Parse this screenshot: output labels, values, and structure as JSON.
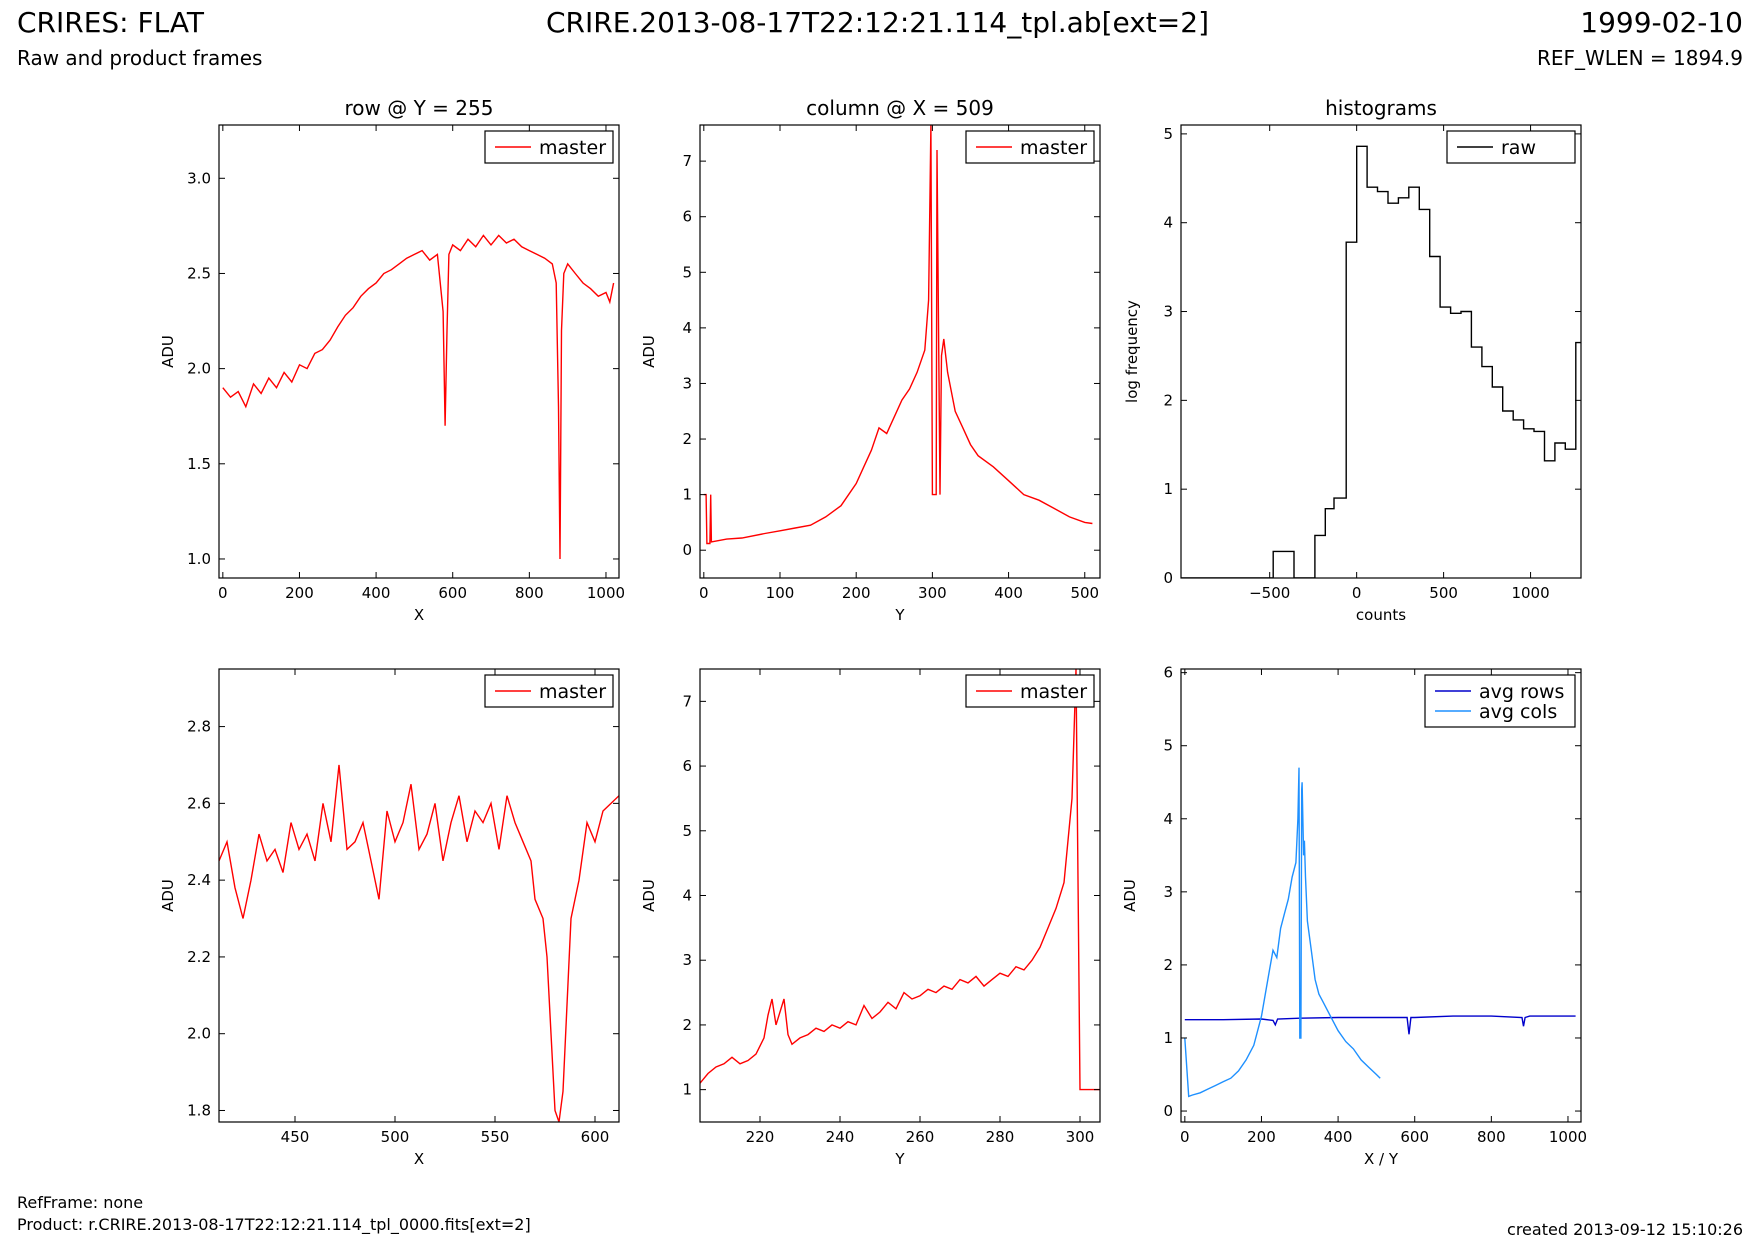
{
  "header": {
    "title_left": "CRIRES: FLAT",
    "subtitle_left": "Raw and product frames",
    "title_center": "CRIRE.2013-08-17T22:12:21.114_tpl.ab[ext=2]",
    "title_right": "1999-02-10",
    "subtitle_right": "REF_WLEN = 1894.9"
  },
  "footer": {
    "ref_frame": "RefFrame: none",
    "product": "Product: r.CRIRE.2013-08-17T22:12:21.114_tpl_0000.fits[ext=2]",
    "created": "created 2013-09-12 15:10:26"
  },
  "colors": {
    "master": "#ff0000",
    "raw": "#000000",
    "avg_rows": "#0000cc",
    "avg_cols": "#1e90ff"
  },
  "chart_data": [
    {
      "id": "row",
      "type": "line",
      "title": "row @ Y = 255",
      "xlabel": "X",
      "ylabel": "ADU",
      "xlim": [
        -10,
        1034
      ],
      "ylim": [
        0.9,
        3.28
      ],
      "xticks": [
        0,
        200,
        400,
        600,
        800,
        1000
      ],
      "yticks": [
        1.0,
        1.5,
        2.0,
        2.5,
        3.0
      ],
      "ytick_decimals": 1,
      "legend": "upper right",
      "series": [
        {
          "name": "master",
          "color": "#ff0000",
          "x": [
            0,
            20,
            40,
            60,
            80,
            100,
            120,
            140,
            160,
            180,
            200,
            220,
            240,
            260,
            280,
            300,
            320,
            340,
            360,
            380,
            400,
            420,
            440,
            460,
            480,
            500,
            520,
            540,
            560,
            575,
            580,
            585,
            590,
            600,
            620,
            640,
            660,
            680,
            700,
            720,
            740,
            760,
            780,
            800,
            820,
            840,
            860,
            870,
            876,
            880,
            884,
            890,
            900,
            920,
            940,
            960,
            980,
            1000,
            1010,
            1020
          ],
          "y": [
            1.9,
            1.85,
            1.88,
            1.8,
            1.92,
            1.87,
            1.95,
            1.9,
            1.98,
            1.93,
            2.02,
            2.0,
            2.08,
            2.1,
            2.15,
            2.22,
            2.28,
            2.32,
            2.38,
            2.42,
            2.45,
            2.5,
            2.52,
            2.55,
            2.58,
            2.6,
            2.62,
            2.57,
            2.6,
            2.3,
            1.7,
            2.2,
            2.6,
            2.65,
            2.62,
            2.68,
            2.64,
            2.7,
            2.65,
            2.7,
            2.66,
            2.68,
            2.64,
            2.62,
            2.6,
            2.58,
            2.55,
            2.45,
            1.8,
            1.0,
            2.2,
            2.5,
            2.55,
            2.5,
            2.45,
            2.42,
            2.38,
            2.4,
            2.35,
            2.45
          ]
        }
      ]
    },
    {
      "id": "column",
      "type": "line",
      "title": "column @ X = 509",
      "xlabel": "Y",
      "ylabel": "ADU",
      "xlim": [
        -5,
        520
      ],
      "ylim": [
        -0.5,
        7.65
      ],
      "xticks": [
        0,
        100,
        200,
        300,
        400,
        500
      ],
      "yticks": [
        0,
        1,
        2,
        3,
        4,
        5,
        6,
        7
      ],
      "ytick_decimals": 0,
      "legend": "upper right",
      "series": [
        {
          "name": "master",
          "color": "#ff0000",
          "x": [
            0,
            3,
            4,
            8,
            9,
            10,
            30,
            50,
            80,
            100,
            120,
            140,
            160,
            180,
            200,
            210,
            220,
            230,
            240,
            250,
            260,
            270,
            280,
            290,
            295,
            298,
            300,
            302,
            303,
            305,
            306,
            310,
            312,
            315,
            320,
            330,
            340,
            350,
            360,
            380,
            400,
            420,
            440,
            460,
            480,
            500,
            510
          ],
          "y": [
            1.0,
            1.0,
            0.12,
            0.12,
            1.0,
            0.15,
            0.2,
            0.22,
            0.3,
            0.35,
            0.4,
            0.45,
            0.6,
            0.8,
            1.2,
            1.5,
            1.8,
            2.2,
            2.1,
            2.4,
            2.7,
            2.9,
            3.2,
            3.6,
            4.5,
            7.65,
            1.0,
            1.0,
            1.0,
            1.0,
            7.2,
            1.0,
            3.5,
            3.8,
            3.2,
            2.5,
            2.2,
            1.9,
            1.7,
            1.5,
            1.25,
            1.0,
            0.9,
            0.75,
            0.6,
            0.5,
            0.48
          ]
        }
      ]
    },
    {
      "id": "histograms",
      "type": "line",
      "title": "histograms",
      "xlabel": "counts",
      "ylabel": "log frequency",
      "xlim": [
        -1010,
        1290
      ],
      "ylim": [
        0,
        5.1
      ],
      "xticks": [
        -500,
        0,
        500,
        1000
      ],
      "yticks": [
        0,
        1,
        2,
        3,
        4,
        5
      ],
      "ytick_decimals": 0,
      "legend": "upper right",
      "series": [
        {
          "name": "raw",
          "color": "#000000",
          "step": true,
          "x": [
            -1010,
            -480,
            -480,
            -360,
            -360,
            -240,
            -240,
            -180,
            -180,
            -130,
            -130,
            -60,
            -60,
            0,
            0,
            60,
            60,
            120,
            120,
            180,
            180,
            240,
            240,
            300,
            300,
            360,
            360,
            420,
            420,
            480,
            480,
            540,
            540,
            600,
            600,
            660,
            660,
            720,
            720,
            780,
            780,
            840,
            840,
            900,
            900,
            960,
            960,
            1020,
            1020,
            1080,
            1080,
            1140,
            1140,
            1200,
            1200,
            1260,
            1260,
            1290
          ],
          "y": [
            0,
            0,
            0.3,
            0.3,
            0,
            0,
            0.48,
            0.48,
            0.78,
            0.78,
            0.9,
            0.9,
            3.78,
            3.78,
            4.86,
            4.86,
            4.4,
            4.4,
            4.35,
            4.35,
            4.22,
            4.22,
            4.28,
            4.28,
            4.4,
            4.4,
            4.15,
            4.15,
            3.62,
            3.62,
            3.05,
            3.05,
            2.98,
            2.98,
            3.0,
            3.0,
            2.6,
            2.6,
            2.38,
            2.38,
            2.15,
            2.15,
            1.88,
            1.88,
            1.78,
            1.78,
            1.68,
            1.68,
            1.65,
            1.65,
            1.32,
            1.32,
            1.52,
            1.52,
            1.45,
            1.45,
            2.65,
            2.65
          ]
        }
      ]
    },
    {
      "id": "row-zoom",
      "type": "line",
      "title": "",
      "xlabel": "X",
      "ylabel": "ADU",
      "xlim": [
        412,
        612
      ],
      "ylim": [
        1.77,
        2.95
      ],
      "xticks": [
        450,
        500,
        550,
        600
      ],
      "yticks": [
        1.8,
        2.0,
        2.2,
        2.4,
        2.6,
        2.8
      ],
      "ytick_decimals": 1,
      "legend": "upper right",
      "series": [
        {
          "name": "master",
          "color": "#ff0000",
          "step": true,
          "x": [
            412,
            416,
            420,
            424,
            428,
            432,
            436,
            440,
            444,
            448,
            452,
            456,
            460,
            464,
            468,
            472,
            476,
            480,
            484,
            488,
            492,
            496,
            500,
            504,
            508,
            512,
            516,
            520,
            524,
            528,
            532,
            536,
            540,
            544,
            548,
            552,
            556,
            560,
            564,
            568,
            570,
            574,
            576,
            578,
            580,
            582,
            584,
            588,
            592,
            596,
            600,
            604,
            608,
            612
          ],
          "y": [
            2.45,
            2.5,
            2.38,
            2.3,
            2.4,
            2.52,
            2.45,
            2.48,
            2.42,
            2.55,
            2.48,
            2.52,
            2.45,
            2.6,
            2.5,
            2.7,
            2.48,
            2.5,
            2.55,
            2.45,
            2.35,
            2.58,
            2.5,
            2.55,
            2.65,
            2.48,
            2.52,
            2.6,
            2.45,
            2.55,
            2.62,
            2.5,
            2.58,
            2.55,
            2.6,
            2.48,
            2.62,
            2.55,
            2.5,
            2.45,
            2.35,
            2.3,
            2.2,
            2.0,
            1.8,
            1.77,
            1.85,
            2.3,
            2.4,
            2.55,
            2.5,
            2.58,
            2.6,
            2.62
          ]
        }
      ]
    },
    {
      "id": "column-zoom",
      "type": "line",
      "title": "",
      "xlabel": "Y",
      "ylabel": "ADU",
      "xlim": [
        205,
        305
      ],
      "ylim": [
        0.5,
        7.5
      ],
      "xticks": [
        220,
        240,
        260,
        280,
        300
      ],
      "yticks": [
        1,
        2,
        3,
        4,
        5,
        6,
        7
      ],
      "ytick_decimals": 0,
      "legend": "upper right",
      "series": [
        {
          "name": "master",
          "color": "#ff0000",
          "step": true,
          "x": [
            205,
            207,
            209,
            211,
            213,
            215,
            217,
            219,
            221,
            222,
            223,
            224,
            226,
            227,
            228,
            230,
            232,
            234,
            236,
            238,
            240,
            242,
            244,
            246,
            248,
            250,
            252,
            254,
            256,
            258,
            260,
            262,
            264,
            266,
            268,
            270,
            272,
            274,
            276,
            278,
            280,
            282,
            284,
            286,
            288,
            290,
            292,
            294,
            296,
            298,
            299,
            300,
            301,
            305
          ],
          "y": [
            1.1,
            1.25,
            1.35,
            1.4,
            1.5,
            1.4,
            1.45,
            1.55,
            1.8,
            2.15,
            2.4,
            2.0,
            2.4,
            1.85,
            1.7,
            1.8,
            1.85,
            1.95,
            1.9,
            2.0,
            1.95,
            2.05,
            2.0,
            2.3,
            2.1,
            2.2,
            2.35,
            2.25,
            2.5,
            2.4,
            2.45,
            2.55,
            2.5,
            2.6,
            2.55,
            2.7,
            2.65,
            2.75,
            2.6,
            2.7,
            2.8,
            2.75,
            2.9,
            2.85,
            3.0,
            3.2,
            3.5,
            3.8,
            4.2,
            5.5,
            7.5,
            1.0,
            1.0,
            1.0
          ]
        }
      ]
    },
    {
      "id": "averages",
      "type": "line",
      "title": "",
      "xlabel": "X / Y",
      "ylabel": "ADU",
      "xlim": [
        -10,
        1034
      ],
      "ylim": [
        -0.15,
        6.05
      ],
      "xticks": [
        0,
        200,
        400,
        600,
        800,
        1000
      ],
      "yticks": [
        0,
        1,
        2,
        3,
        4,
        5,
        6
      ],
      "ytick_decimals": 0,
      "legend": "upper right",
      "series": [
        {
          "name": "avg rows",
          "color": "#0000cc",
          "x": [
            0,
            100,
            200,
            230,
            236,
            242,
            300,
            400,
            500,
            580,
            585,
            590,
            600,
            700,
            800,
            880,
            884,
            888,
            900,
            1000,
            1020
          ],
          "y": [
            1.25,
            1.25,
            1.26,
            1.24,
            1.18,
            1.26,
            1.27,
            1.28,
            1.28,
            1.28,
            1.05,
            1.28,
            1.28,
            1.3,
            1.3,
            1.28,
            1.16,
            1.28,
            1.3,
            1.3,
            1.3
          ]
        },
        {
          "name": "avg cols",
          "color": "#1e90ff",
          "x": [
            0,
            10,
            20,
            40,
            60,
            80,
            100,
            120,
            140,
            160,
            180,
            200,
            210,
            220,
            230,
            240,
            250,
            260,
            270,
            280,
            290,
            295,
            298,
            300,
            302,
            303,
            305,
            306,
            310,
            312,
            315,
            320,
            330,
            340,
            350,
            360,
            380,
            400,
            420,
            440,
            460,
            480,
            500,
            510
          ],
          "y": [
            1.0,
            0.2,
            0.22,
            0.25,
            0.3,
            0.35,
            0.4,
            0.45,
            0.55,
            0.7,
            0.9,
            1.3,
            1.6,
            1.9,
            2.2,
            2.1,
            2.5,
            2.7,
            2.9,
            3.2,
            3.4,
            4.0,
            4.7,
            1.0,
            1.0,
            1.0,
            4.4,
            4.5,
            3.5,
            3.7,
            3.2,
            2.6,
            2.2,
            1.8,
            1.6,
            1.5,
            1.3,
            1.1,
            0.95,
            0.85,
            0.7,
            0.6,
            0.5,
            0.45
          ]
        }
      ]
    }
  ]
}
